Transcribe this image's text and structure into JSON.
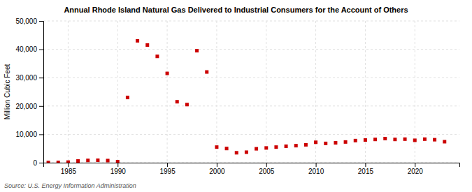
{
  "chart_data": {
    "type": "scatter",
    "title": "Annual Rhode Island Natural Gas Delivered to Industrial Consumers for the Account of Others",
    "ylabel": "Million Cubic Feet",
    "source": "Source: U.S. Energy Information Administration",
    "x": [
      1983,
      1984,
      1985,
      1986,
      1987,
      1988,
      1989,
      1990,
      1991,
      1992,
      1993,
      1994,
      1995,
      1996,
      1997,
      1998,
      1999,
      2000,
      2001,
      2002,
      2003,
      2004,
      2005,
      2006,
      2007,
      2008,
      2009,
      2010,
      2011,
      2012,
      2013,
      2014,
      2015,
      2016,
      2017,
      2018,
      2019,
      2020,
      2021,
      2022,
      2023
    ],
    "values": [
      50,
      80,
      200,
      600,
      800,
      850,
      750,
      350,
      23000,
      43000,
      41500,
      37500,
      31500,
      21500,
      20500,
      39500,
      32000,
      5500,
      5000,
      3500,
      3700,
      4900,
      5200,
      5500,
      5800,
      6000,
      6300,
      7200,
      6800,
      7000,
      7300,
      7800,
      8000,
      8200,
      8500,
      8200,
      8300,
      7900,
      8300,
      8100,
      7400
    ],
    "color": "#cc0000",
    "marker": "square",
    "xlim": [
      1982.5,
      2024.5
    ],
    "ylim": [
      0,
      50000
    ],
    "xticks": [
      1985,
      1990,
      1995,
      2000,
      2005,
      2010,
      2015,
      2020
    ],
    "yticks": [
      0,
      {
        "value": 10000,
        "label": "10,000"
      },
      {
        "value": 20000,
        "label": "20,000"
      },
      {
        "value": 30000,
        "label": "30,000"
      },
      {
        "value": 40000,
        "label": "40,000"
      },
      {
        "value": 50000,
        "label": "50,000"
      }
    ],
    "grid": true
  }
}
